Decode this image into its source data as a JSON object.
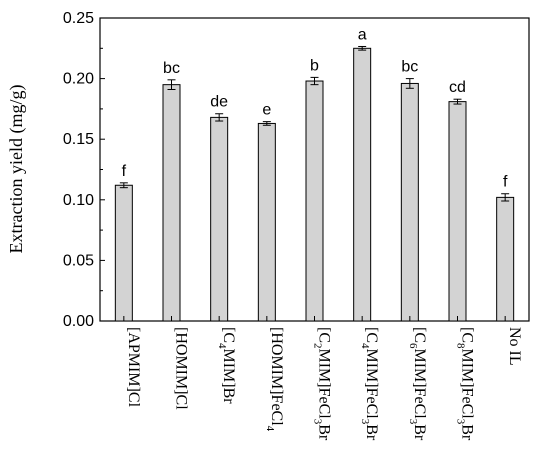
{
  "chart_data": {
    "type": "bar",
    "ylabel": "Extraction yield (mg/g)",
    "xlabel": "",
    "ylim": [
      0.0,
      0.25
    ],
    "yticks": [
      "0.00",
      "0.05",
      "0.10",
      "0.15",
      "0.20",
      "0.25"
    ],
    "grid": false,
    "bar_color": "#d3d3d3",
    "categories": [
      {
        "parts": [
          {
            "t": "[APMIM]Cl",
            "sub": false
          }
        ]
      },
      {
        "parts": [
          {
            "t": "[HOMIM]Cl",
            "sub": false
          }
        ]
      },
      {
        "parts": [
          {
            "t": "[C",
            "sub": false
          },
          {
            "t": "4",
            "sub": true
          },
          {
            "t": "MIM]Br",
            "sub": false
          }
        ]
      },
      {
        "parts": [
          {
            "t": "[HOMIM]FeCl",
            "sub": false
          },
          {
            "t": "4",
            "sub": true
          }
        ]
      },
      {
        "parts": [
          {
            "t": "[C",
            "sub": false
          },
          {
            "t": "2",
            "sub": true
          },
          {
            "t": "MIM]FeCl",
            "sub": false
          },
          {
            "t": "3",
            "sub": true
          },
          {
            "t": "Br",
            "sub": false
          }
        ]
      },
      {
        "parts": [
          {
            "t": "[C",
            "sub": false
          },
          {
            "t": "4",
            "sub": true
          },
          {
            "t": "MIM]FeCl",
            "sub": false
          },
          {
            "t": "3",
            "sub": true
          },
          {
            "t": "Br",
            "sub": false
          }
        ]
      },
      {
        "parts": [
          {
            "t": "[C",
            "sub": false
          },
          {
            "t": "6",
            "sub": true
          },
          {
            "t": "MIM]FeCl",
            "sub": false
          },
          {
            "t": "3",
            "sub": true
          },
          {
            "t": "Br",
            "sub": false
          }
        ]
      },
      {
        "parts": [
          {
            "t": "[C",
            "sub": false
          },
          {
            "t": "8",
            "sub": true
          },
          {
            "t": "MIM]FeCl",
            "sub": false
          },
          {
            "t": "3",
            "sub": true
          },
          {
            "t": "Br",
            "sub": false
          }
        ]
      },
      {
        "parts": [
          {
            "t": "No IL",
            "sub": false
          }
        ]
      }
    ],
    "values": [
      0.112,
      0.195,
      0.168,
      0.163,
      0.198,
      0.225,
      0.196,
      0.181,
      0.102
    ],
    "errors": [
      0.002,
      0.004,
      0.003,
      0.0015,
      0.003,
      0.0015,
      0.004,
      0.002,
      0.003
    ],
    "letters": [
      "f",
      "bc",
      "de",
      "e",
      "b",
      "a",
      "bc",
      "cd",
      "f"
    ]
  }
}
